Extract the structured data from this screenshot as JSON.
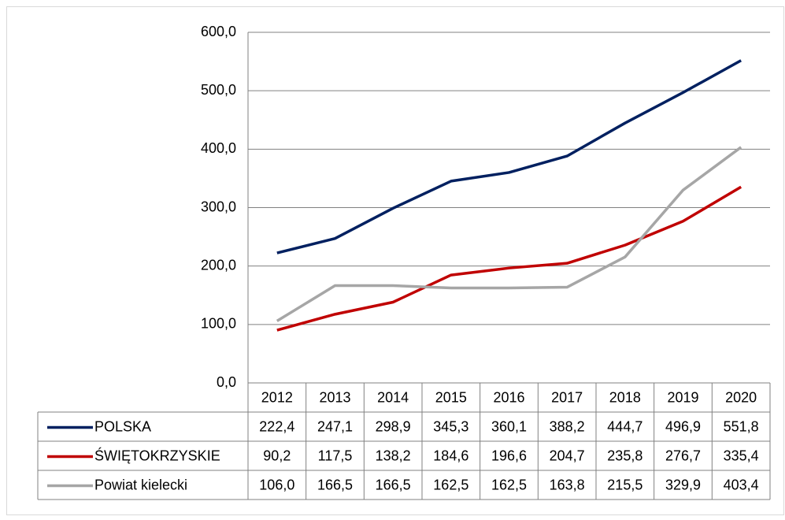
{
  "chart_data": {
    "type": "line",
    "categories": [
      "2012",
      "2013",
      "2014",
      "2015",
      "2016",
      "2017",
      "2018",
      "2019",
      "2020"
    ],
    "series": [
      {
        "name": "POLSKA",
        "color": "#002060",
        "values": [
          222.4,
          247.1,
          298.9,
          345.3,
          360.1,
          388.2,
          444.7,
          496.9,
          551.8
        ],
        "value_labels": [
          "222,4",
          "247,1",
          "298,9",
          "345,3",
          "360,1",
          "388,2",
          "444,7",
          "496,9",
          "551,8"
        ]
      },
      {
        "name": "ŚWIĘTOKRZYSKIE",
        "color": "#c00000",
        "values": [
          90.2,
          117.5,
          138.2,
          184.6,
          196.6,
          204.7,
          235.8,
          276.7,
          335.4
        ],
        "value_labels": [
          "90,2",
          "117,5",
          "138,2",
          "184,6",
          "196,6",
          "204,7",
          "235,8",
          "276,7",
          "335,4"
        ]
      },
      {
        "name": "Powiat kielecki",
        "color": "#a6a6a6",
        "values": [
          106.0,
          166.5,
          166.5,
          162.5,
          162.5,
          163.8,
          215.5,
          329.9,
          403.4
        ],
        "value_labels": [
          "106,0",
          "166,5",
          "166,5",
          "162,5",
          "162,5",
          "163,8",
          "215,5",
          "329,9",
          "403,4"
        ]
      }
    ],
    "ylim": [
      0,
      600
    ],
    "yticks": [
      {
        "value": 0,
        "label": "0,0"
      },
      {
        "value": 100,
        "label": "100,0"
      },
      {
        "value": 200,
        "label": "200,0"
      },
      {
        "value": 300,
        "label": "300,0"
      },
      {
        "value": 400,
        "label": "400,0"
      },
      {
        "value": 500,
        "label": "500,0"
      },
      {
        "value": 600,
        "label": "600,0"
      }
    ],
    "grid": true
  }
}
